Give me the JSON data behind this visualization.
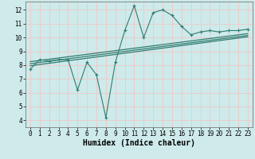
{
  "title": "",
  "xlabel": "Humidex (Indice chaleur)",
  "bg_color": "#ceeaea",
  "grid_color": "#f0c8c8",
  "line_color": "#2e7d70",
  "xlim": [
    -0.5,
    23.5
  ],
  "ylim": [
    3.5,
    12.6
  ],
  "xticks": [
    0,
    1,
    2,
    3,
    4,
    5,
    6,
    7,
    8,
    9,
    10,
    11,
    12,
    13,
    14,
    15,
    16,
    17,
    18,
    19,
    20,
    21,
    22,
    23
  ],
  "yticks": [
    4,
    5,
    6,
    7,
    8,
    9,
    10,
    11,
    12
  ],
  "main_data_x": [
    0,
    1,
    2,
    3,
    4,
    5,
    6,
    7,
    8,
    9,
    10,
    11,
    12,
    13,
    14,
    15,
    16,
    17,
    18,
    19,
    20,
    21,
    22,
    23
  ],
  "main_data_y": [
    7.7,
    8.4,
    8.3,
    8.4,
    8.4,
    6.2,
    8.2,
    7.3,
    4.2,
    8.2,
    10.5,
    12.3,
    10.0,
    11.8,
    12.0,
    11.6,
    10.8,
    10.2,
    10.4,
    10.5,
    10.4,
    10.5,
    10.5,
    10.6
  ],
  "trend_data": [
    {
      "x": [
        0,
        23
      ],
      "y": [
        7.95,
        10.05
      ]
    },
    {
      "x": [
        0,
        23
      ],
      "y": [
        8.1,
        10.15
      ]
    },
    {
      "x": [
        0,
        23
      ],
      "y": [
        8.25,
        10.28
      ]
    }
  ],
  "tick_fontsize": 5.5,
  "xlabel_fontsize": 7.0
}
